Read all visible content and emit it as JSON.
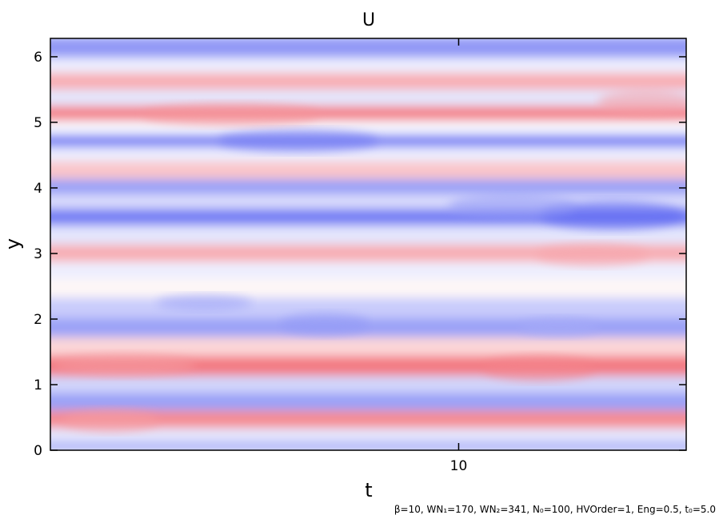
{
  "chart_data": {
    "type": "heatmap",
    "title": "U",
    "xlabel": "t",
    "ylabel": "y",
    "xlim": [
      3.9,
      13.4
    ],
    "ylim": [
      0,
      6.28
    ],
    "x_ticks": [
      10
    ],
    "y_ticks": [
      0,
      1,
      2,
      3,
      4,
      5,
      6
    ],
    "colorscale": [
      "#4a55f0",
      "#ffffff",
      "#f05a64"
    ],
    "grid": false,
    "legend": "none",
    "footnote": "β=10, WN₁=170, WN₂=341, N₀=100, HVOrder=1, Eng=0.5, t₀=5.0",
    "bands": [
      {
        "y": 0.05,
        "v": -0.45
      },
      {
        "y": 0.25,
        "v": -0.15
      },
      {
        "y": 0.48,
        "v": 0.7
      },
      {
        "y": 0.78,
        "v": -0.55
      },
      {
        "y": 1.02,
        "v": -0.25
      },
      {
        "y": 1.3,
        "v": 0.8
      },
      {
        "y": 1.62,
        "v": 0.25
      },
      {
        "y": 1.88,
        "v": -0.55
      },
      {
        "y": 2.2,
        "v": -0.3
      },
      {
        "y": 2.5,
        "v": 0.05
      },
      {
        "y": 2.78,
        "v": -0.1
      },
      {
        "y": 3.02,
        "v": 0.5
      },
      {
        "y": 3.3,
        "v": -0.15
      },
      {
        "y": 3.6,
        "v": -0.75
      },
      {
        "y": 3.82,
        "v": -0.2
      },
      {
        "y": 4.02,
        "v": -0.55
      },
      {
        "y": 4.3,
        "v": 0.35
      },
      {
        "y": 4.55,
        "v": -0.1
      },
      {
        "y": 4.73,
        "v": -0.7
      },
      {
        "y": 4.95,
        "v": -0.05
      },
      {
        "y": 5.15,
        "v": 0.75
      },
      {
        "y": 5.4,
        "v": -0.15
      },
      {
        "y": 5.65,
        "v": 0.5
      },
      {
        "y": 5.9,
        "v": -0.1
      },
      {
        "y": 6.12,
        "v": -0.6
      }
    ]
  }
}
